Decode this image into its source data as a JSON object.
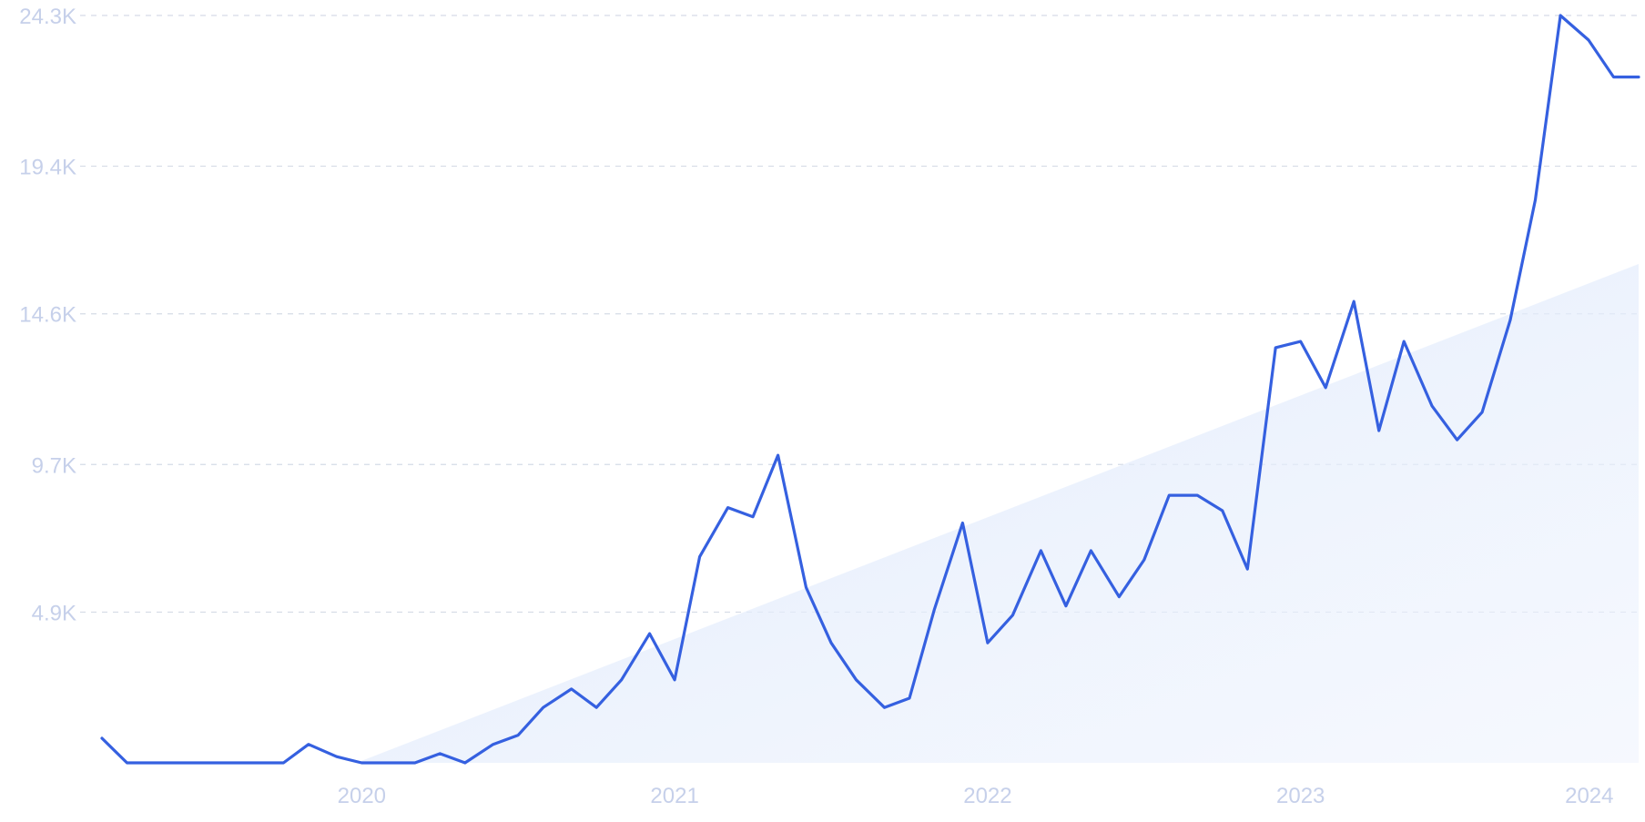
{
  "chart_data": {
    "type": "line",
    "title": "",
    "xlabel": "",
    "ylabel": "",
    "y_ticks": [
      "24.3K",
      "19.4K",
      "14.6K",
      "9.7K",
      "4.9K"
    ],
    "y_tick_values": [
      24300,
      19400,
      14600,
      9700,
      4900
    ],
    "x_ticks": [
      "2020",
      "2021",
      "2022",
      "2023",
      "2024"
    ],
    "x_tick_values": [
      2020.0,
      2021.0,
      2022.0,
      2023.0,
      2024.0
    ],
    "ylim": [
      0,
      24300
    ],
    "xlim": [
      2019.17,
      2024.08
    ],
    "grid": true,
    "legend": "none",
    "colors": {
      "line": "#3560e0",
      "area_fill": "#dbe7fb",
      "grid": "#d5dbe6",
      "ticks": "#c6d0ea"
    },
    "series": [
      {
        "x": [
          2019.17,
          2019.25,
          2019.33,
          2019.42,
          2019.5,
          2019.58,
          2019.67,
          2019.75,
          2019.83,
          2019.92,
          2020.0,
          2020.08,
          2020.17,
          2020.25,
          2020.33,
          2020.42,
          2020.5,
          2020.58,
          2020.67,
          2020.75,
          2020.83,
          2020.92,
          2021.0,
          2021.08,
          2021.17,
          2021.25,
          2021.33,
          2021.42,
          2021.5,
          2021.58,
          2021.67,
          2021.75,
          2021.83,
          2021.92,
          2022.0,
          2022.08,
          2022.17,
          2022.25,
          2022.33,
          2022.42,
          2022.5,
          2022.58,
          2022.67,
          2022.75,
          2022.83,
          2022.92,
          2023.0,
          2023.08,
          2023.17,
          2023.25,
          2023.33,
          2023.42,
          2023.5,
          2023.58,
          2023.67,
          2023.75,
          2023.83,
          2023.92,
          2024.0,
          2024.08
        ],
        "values": [
          800,
          0,
          0,
          0,
          0,
          0,
          0,
          0,
          600,
          200,
          0,
          0,
          0,
          300,
          0,
          600,
          900,
          1800,
          2400,
          1800,
          2700,
          4200,
          2700,
          6700,
          8300,
          8000,
          10000,
          5700,
          3900,
          2700,
          1800,
          2100,
          5000,
          7800,
          3900,
          4800,
          6900,
          5100,
          6900,
          5400,
          6600,
          8700,
          8700,
          8200,
          6300,
          13500,
          13700,
          12200,
          15000,
          10800,
          13700,
          11600,
          10500,
          11400,
          14400,
          18300,
          24300,
          23500,
          22300,
          22300
        ]
      }
    ]
  }
}
